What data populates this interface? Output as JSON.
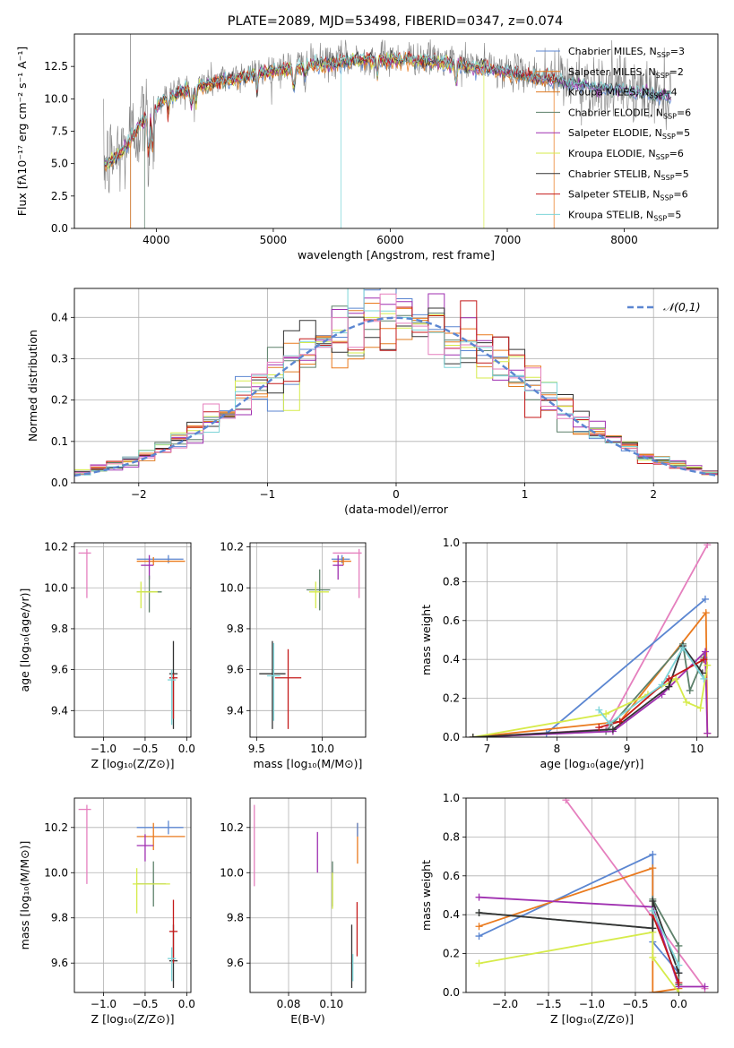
{
  "figure": {
    "title": "PLATE=2089, MJD=53498, FIBERID=0347, z=0.074"
  },
  "colors": {
    "Chabrier MILES": "#5b86d1",
    "Salpeter MILES": "#ea7a1e",
    "Kroupa MILES": "#e07c22",
    "Chabrier ELODIE": "#5d806a",
    "Salpeter ELODIE": "#9f2fb0",
    "Kroupa ELODIE": "#d6eb4a",
    "Chabrier STELIB": "#333333",
    "Salpeter STELIB": "#c41a1a",
    "Kroupa STELIB": "#7dd4d8",
    "pink": "#e57fbe",
    "data": "#808080",
    "normal": "#5b86d1"
  },
  "chart_data": [
    {
      "id": "spectrum",
      "type": "line",
      "title": "PLATE=2089, MJD=53498, FIBERID=0347, z=0.074",
      "xlabel": "wavelength [Angstrom, rest frame]",
      "ylabel": "Flux [fλ10⁻¹⁷ erg cm⁻² s⁻¹ A⁻¹]",
      "xlim": [
        3300,
        8800
      ],
      "ylim": [
        0,
        15
      ],
      "xticks": [
        "4000",
        "5000",
        "6000",
        "7000",
        "8000"
      ],
      "yticks": [
        "0.0",
        "2.5",
        "5.0",
        "7.5",
        "10.0",
        "12.5"
      ],
      "grid": false,
      "legend_position": "top-right",
      "legend": [
        "Chabrier MILES, N_SSP=3",
        "Salpeter MILES, N_SSP=2",
        "Kroupa MILES, N_SSP=4",
        "Chabrier ELODIE, N_SSP=6",
        "Salpeter ELODIE, N_SSP=5",
        "Kroupa ELODIE, N_SSP=6",
        "Chabrier STELIB, N_SSP=5",
        "Salpeter STELIB, N_SSP=6",
        "Kroupa STELIB, N_SSP=5"
      ],
      "continuum": {
        "wavelength": [
          3550,
          3650,
          3750,
          3850,
          3950,
          4050,
          4150,
          4300,
          4450,
          4600,
          4800,
          5000,
          5200,
          5400,
          5600,
          5800,
          6000,
          6200,
          6400,
          6600,
          6800,
          7000,
          7200,
          7400,
          7600,
          7800,
          8000,
          8200,
          8400,
          8600,
          8800
        ],
        "flux": [
          5.0,
          5.5,
          6.5,
          8.0,
          9.0,
          10.0,
          10.5,
          11.0,
          11.3,
          11.6,
          12.0,
          12.3,
          12.6,
          12.8,
          13.0,
          13.2,
          13.2,
          13.2,
          13.0,
          12.8,
          12.5,
          12.2,
          11.9,
          11.6,
          11.3,
          11.0,
          10.8,
          10.5,
          10.3,
          10.1,
          9.9
        ]
      }
    },
    {
      "id": "residuals",
      "type": "bar",
      "xlabel": "(data-model)/error",
      "ylabel": "Normed distribution",
      "xlim": [
        -2.5,
        2.5
      ],
      "ylim": [
        0,
        0.47
      ],
      "xticks": [
        "−2",
        "−1",
        "0",
        "1",
        "2"
      ],
      "yticks": [
        "0.0",
        "0.1",
        "0.2",
        "0.3",
        "0.4"
      ],
      "grid": true,
      "legend_position": "top-right",
      "legend": [
        "𝒩(0,1)"
      ]
    },
    {
      "id": "age-vs-Z",
      "type": "scatter",
      "xlabel": "Z [log₁₀(Z/Z⊙)]",
      "ylabel": "age  [log₁₀(age/yr)]",
      "xlim": [
        -1.35,
        0.05
      ],
      "ylim": [
        9.27,
        10.22
      ],
      "xticks": [
        "−1.0",
        "−0.5",
        "0.0"
      ],
      "yticks": [
        "9.4",
        "9.6",
        "9.8",
        "10.0",
        "10.2"
      ],
      "grid": true
    },
    {
      "id": "age-vs-mass",
      "type": "scatter",
      "xlabel": "mass [log₁₀(M/M⊙)]",
      "xlim": [
        9.45,
        10.33
      ],
      "ylim": [
        9.27,
        10.22
      ],
      "xticks": [
        "9.5",
        "10.0"
      ],
      "yticks": [
        "9.4",
        "9.6",
        "9.8",
        "10.0",
        "10.2"
      ],
      "grid": true
    },
    {
      "id": "massweight-vs-age",
      "type": "line",
      "xlabel": "age  [log₁₀(age/yr)]",
      "ylabel": "mass weight",
      "xlim": [
        6.7,
        10.3
      ],
      "ylim": [
        0,
        1.0
      ],
      "xticks": [
        "7",
        "8",
        "9",
        "10"
      ],
      "yticks": [
        "0.0",
        "0.2",
        "0.4",
        "0.6",
        "0.8",
        "1.0"
      ],
      "grid": true
    },
    {
      "id": "mass-vs-Z",
      "type": "scatter",
      "xlabel": "Z [log₁₀(Z/Z⊙)]",
      "ylabel": "mass [log₁₀(M/M⊙)]",
      "xlim": [
        -1.35,
        0.05
      ],
      "ylim": [
        9.47,
        10.33
      ],
      "xticks": [
        "−1.0",
        "−0.5",
        "0.0"
      ],
      "yticks": [
        "9.6",
        "9.8",
        "10.0",
        "10.2"
      ],
      "grid": true
    },
    {
      "id": "mass-vs-EBV",
      "type": "scatter",
      "xlabel": "E(B-V)",
      "xlim": [
        0.062,
        0.116
      ],
      "ylim": [
        9.47,
        10.33
      ],
      "xticks": [
        "0.08",
        "0.10"
      ],
      "yticks": [
        "9.6",
        "9.8",
        "10.0",
        "10.2"
      ],
      "grid": true
    },
    {
      "id": "massweight-vs-Z",
      "type": "line",
      "xlabel": "Z [log₁₀(Z/Z⊙)]",
      "ylabel": "mass weight",
      "xlim": [
        -2.45,
        0.45
      ],
      "ylim": [
        0,
        1.0
      ],
      "xticks": [
        "−2.0",
        "−1.5",
        "−1.0",
        "−0.5",
        "0.0"
      ],
      "yticks": [
        "0.0",
        "0.2",
        "0.4",
        "0.6",
        "0.8",
        "1.0"
      ],
      "grid": true
    }
  ],
  "errorbars": {
    "age_Z": [
      {
        "x": -0.22,
        "y": 10.14,
        "xl": 0.38,
        "xr": 0.18,
        "yd": 0.02,
        "yu": 0.02,
        "c": "#5b86d1"
      },
      {
        "x": -0.4,
        "y": 10.13,
        "xl": 0.2,
        "xr": 0.38,
        "yd": 0.02,
        "yu": 0.02,
        "c": "#ea7a1e"
      },
      {
        "x": -1.2,
        "y": 10.17,
        "xl": 0.1,
        "xr": 0.05,
        "yd": 0.22,
        "yu": 0.02,
        "c": "#e57fbe"
      },
      {
        "x": -0.45,
        "y": 10.11,
        "xl": 0.1,
        "xr": 0.05,
        "yd": 0.07,
        "yu": 0.05,
        "c": "#9f2fb0"
      },
      {
        "x": -0.45,
        "y": 9.98,
        "xl": 0.15,
        "xr": 0.15,
        "yd": 0.1,
        "yu": 0.08,
        "c": "#5d806a"
      },
      {
        "x": -0.55,
        "y": 9.98,
        "xl": 0.05,
        "xr": 0.2,
        "yd": 0.08,
        "yu": 0.05,
        "c": "#d6eb4a"
      },
      {
        "x": -0.16,
        "y": 9.58,
        "xl": 0.05,
        "xr": 0.05,
        "yd": 0.27,
        "yu": 0.16,
        "c": "#333333"
      },
      {
        "x": -0.16,
        "y": 9.56,
        "xl": 0.05,
        "xr": 0.05,
        "yd": 0.2,
        "yu": 0.02,
        "c": "#c41a1a"
      },
      {
        "x": -0.18,
        "y": 9.55,
        "xl": 0.05,
        "xr": 0.05,
        "yd": 0.22,
        "yu": 0.05,
        "c": "#7dd4d8"
      }
    ],
    "age_mass": [
      {
        "x": 10.15,
        "y": 10.14,
        "xl": 0.08,
        "xr": 0.06,
        "yd": 0.02,
        "yu": 0.02,
        "c": "#5b86d1"
      },
      {
        "x": 10.16,
        "y": 10.13,
        "xl": 0.08,
        "xr": 0.06,
        "yd": 0.02,
        "yu": 0.02,
        "c": "#ea7a1e"
      },
      {
        "x": 10.28,
        "y": 10.17,
        "xl": 0.2,
        "xr": 0.02,
        "yd": 0.22,
        "yu": 0.02,
        "c": "#e57fbe"
      },
      {
        "x": 10.12,
        "y": 10.11,
        "xl": 0.04,
        "xr": 0.04,
        "yd": 0.07,
        "yu": 0.05,
        "c": "#9f2fb0"
      },
      {
        "x": 9.98,
        "y": 9.99,
        "xl": 0.1,
        "xr": 0.08,
        "yd": 0.1,
        "yu": 0.1,
        "c": "#5d806a"
      },
      {
        "x": 9.95,
        "y": 9.98,
        "xl": 0.05,
        "xr": 0.1,
        "yd": 0.08,
        "yu": 0.05,
        "c": "#d6eb4a"
      },
      {
        "x": 9.62,
        "y": 9.58,
        "xl": 0.1,
        "xr": 0.1,
        "yd": 0.27,
        "yu": 0.16,
        "c": "#333333"
      },
      {
        "x": 9.74,
        "y": 9.56,
        "xl": 0.1,
        "xr": 0.1,
        "yd": 0.25,
        "yu": 0.14,
        "c": "#c41a1a"
      },
      {
        "x": 9.63,
        "y": 9.57,
        "xl": 0.05,
        "xr": 0.05,
        "yd": 0.22,
        "yu": 0.16,
        "c": "#7dd4d8"
      }
    ],
    "mass_Z": [
      {
        "x": -0.22,
        "y": 10.2,
        "xl": 0.38,
        "xr": 0.18,
        "yd": 0.03,
        "yu": 0.03,
        "c": "#5b86d1"
      },
      {
        "x": -0.4,
        "y": 10.16,
        "xl": 0.2,
        "xr": 0.38,
        "yd": 0.06,
        "yu": 0.06,
        "c": "#ea7a1e"
      },
      {
        "x": -1.2,
        "y": 10.28,
        "xl": 0.1,
        "xr": 0.05,
        "yd": 0.33,
        "yu": 0.02,
        "c": "#e57fbe"
      },
      {
        "x": -0.5,
        "y": 10.12,
        "xl": 0.1,
        "xr": 0.1,
        "yd": 0.07,
        "yu": 0.05,
        "c": "#9f2fb0"
      },
      {
        "x": -0.4,
        "y": 9.95,
        "xl": 0.2,
        "xr": 0.15,
        "yd": 0.1,
        "yu": 0.1,
        "c": "#5d806a"
      },
      {
        "x": -0.6,
        "y": 9.95,
        "xl": 0.05,
        "xr": 0.4,
        "yd": 0.13,
        "yu": 0.07,
        "c": "#d6eb4a"
      },
      {
        "x": -0.16,
        "y": 9.61,
        "xl": 0.05,
        "xr": 0.05,
        "yd": 0.12,
        "yu": 0.16,
        "c": "#333333"
      },
      {
        "x": -0.16,
        "y": 9.74,
        "xl": 0.05,
        "xr": 0.05,
        "yd": 0.14,
        "yu": 0.14,
        "c": "#c41a1a"
      },
      {
        "x": -0.18,
        "y": 9.62,
        "xl": 0.05,
        "xr": 0.05,
        "yd": 0.1,
        "yu": 0.05,
        "c": "#7dd4d8"
      }
    ],
    "mass_EBV": [
      {
        "x": 0.064,
        "y": 10.12,
        "yd": 0.18,
        "yu": 0.18,
        "c": "#e57fbe"
      },
      {
        "x": 0.0935,
        "y": 10.09,
        "yd": 0.09,
        "yu": 0.09,
        "c": "#9f2fb0"
      },
      {
        "x": 0.1005,
        "y": 9.95,
        "yd": 0.1,
        "yu": 0.1,
        "c": "#5d806a"
      },
      {
        "x": 0.1005,
        "y": 9.96,
        "yd": 0.12,
        "yu": 0.04,
        "c": "#d6eb4a"
      },
      {
        "x": 0.1095,
        "y": 9.64,
        "yd": 0.15,
        "yu": 0.13,
        "c": "#333333"
      },
      {
        "x": 0.112,
        "y": 9.75,
        "yd": 0.12,
        "yu": 0.12,
        "c": "#c41a1a"
      },
      {
        "x": 0.11,
        "y": 9.62,
        "yd": 0.1,
        "yu": 0.02,
        "c": "#7dd4d8"
      },
      {
        "x": 0.1122,
        "y": 10.13,
        "yd": 0.09,
        "yu": 0.09,
        "c": "#ea7a1e"
      },
      {
        "x": 0.1122,
        "y": 10.19,
        "yd": 0.03,
        "yu": 0.03,
        "c": "#5b86d1"
      }
    ]
  },
  "weights": {
    "age": [
      {
        "c": "#e57fbe",
        "pts": [
          [
            6.8,
            0.0
          ],
          [
            8.7,
            0.04
          ],
          [
            10.15,
            0.99
          ]
        ]
      },
      {
        "c": "#5b86d1",
        "pts": [
          [
            6.8,
            0.0
          ],
          [
            7.85,
            0.02
          ],
          [
            10.12,
            0.71
          ]
        ]
      },
      {
        "c": "#ea7a1e",
        "pts": [
          [
            6.8,
            0.0
          ],
          [
            8.9,
            0.08
          ],
          [
            10.13,
            0.64
          ],
          [
            10.15,
            0.02
          ]
        ]
      },
      {
        "c": "#5d806a",
        "pts": [
          [
            6.8,
            0.0
          ],
          [
            8.7,
            0.03
          ],
          [
            9.8,
            0.48
          ],
          [
            9.9,
            0.24
          ],
          [
            10.1,
            0.41
          ]
        ]
      },
      {
        "c": "#9f2fb0",
        "pts": [
          [
            6.8,
            0.0
          ],
          [
            8.8,
            0.03
          ],
          [
            9.5,
            0.22
          ],
          [
            10.12,
            0.44
          ],
          [
            10.15,
            0.02
          ]
        ]
      },
      {
        "c": "#d6eb4a",
        "pts": [
          [
            6.8,
            0.0
          ],
          [
            8.7,
            0.12
          ],
          [
            9.3,
            0.22
          ],
          [
            9.7,
            0.3
          ],
          [
            9.85,
            0.18
          ],
          [
            10.05,
            0.15
          ],
          [
            10.15,
            0.37
          ]
        ]
      },
      {
        "c": "#333333",
        "pts": [
          [
            6.8,
            0.0
          ],
          [
            8.8,
            0.04
          ],
          [
            9.6,
            0.26
          ],
          [
            9.8,
            0.47
          ],
          [
            10.08,
            0.33
          ]
        ]
      },
      {
        "c": "#c41a1a",
        "pts": [
          [
            8.6,
            0.05
          ],
          [
            8.9,
            0.08
          ],
          [
            9.6,
            0.3
          ],
          [
            10.1,
            0.4
          ]
        ]
      },
      {
        "c": "#7dd4d8",
        "pts": [
          [
            8.6,
            0.14
          ],
          [
            8.75,
            0.07
          ],
          [
            9.5,
            0.27
          ],
          [
            9.8,
            0.46
          ],
          [
            10.1,
            0.3
          ]
        ]
      }
    ],
    "Z": [
      {
        "c": "#e57fbe",
        "pts": [
          [
            -1.3,
            0.99
          ],
          [
            0.3,
            0.02
          ]
        ]
      },
      {
        "c": "#5b86d1",
        "pts": [
          [
            -2.3,
            0.29
          ],
          [
            -0.3,
            0.71
          ],
          [
            -0.3,
            0.26
          ],
          [
            0.0,
            0.1
          ]
        ]
      },
      {
        "c": "#ea7a1e",
        "pts": [
          [
            -2.3,
            0.34
          ],
          [
            -0.3,
            0.64
          ],
          [
            -0.3,
            0.0
          ],
          [
            0.0,
            0.02
          ]
        ]
      },
      {
        "c": "#5d806a",
        "pts": [
          [
            -2.3,
            0.41
          ],
          [
            -0.3,
            0.33
          ],
          [
            -0.3,
            0.48
          ],
          [
            0.0,
            0.24
          ],
          [
            0.0,
            0.04
          ]
        ]
      },
      {
        "c": "#9f2fb0",
        "pts": [
          [
            -2.3,
            0.49
          ],
          [
            -0.3,
            0.44
          ],
          [
            0.0,
            0.03
          ],
          [
            0.3,
            0.03
          ]
        ]
      },
      {
        "c": "#d6eb4a",
        "pts": [
          [
            -2.3,
            0.15
          ],
          [
            -0.3,
            0.31
          ],
          [
            -0.3,
            0.18
          ],
          [
            0.0,
            0.0
          ]
        ]
      },
      {
        "c": "#333333",
        "pts": [
          [
            -2.3,
            0.41
          ],
          [
            -0.3,
            0.33
          ],
          [
            -0.3,
            0.47
          ],
          [
            0.0,
            0.1
          ]
        ]
      },
      {
        "c": "#c41a1a",
        "pts": [
          [
            -0.3,
            0.4
          ],
          [
            0.0,
            0.05
          ]
        ]
      },
      {
        "c": "#7dd4d8",
        "pts": [
          [
            -0.3,
            0.42
          ],
          [
            0.0,
            0.14
          ]
        ]
      }
    ]
  }
}
